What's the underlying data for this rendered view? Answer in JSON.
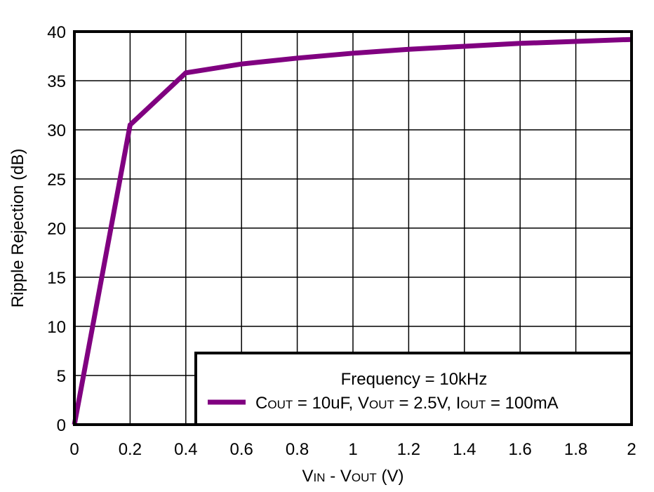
{
  "chart_data": {
    "type": "line",
    "title": "",
    "xlabel": {
      "main": "V",
      "sub1": "IN",
      "mid": " - V",
      "sub2": "OUT",
      "end": " (V)"
    },
    "ylabel": "Ripple Rejection (dB)",
    "xlim": [
      0,
      2
    ],
    "ylim": [
      0,
      40
    ],
    "xticks": [
      0,
      0.2,
      0.4,
      0.6,
      0.8,
      1,
      1.2,
      1.4,
      1.6,
      1.8,
      2
    ],
    "xtick_labels": [
      "0",
      "0.2",
      "0.4",
      "0.6",
      "0.8",
      "1",
      "1.2",
      "1.4",
      "1.6",
      "1.8",
      "2"
    ],
    "yticks": [
      0,
      5,
      10,
      15,
      20,
      25,
      30,
      35,
      40
    ],
    "ytick_labels": [
      "0",
      "5",
      "10",
      "15",
      "20",
      "25",
      "30",
      "35",
      "40"
    ],
    "grid": true,
    "legend_placement": "bottom-right",
    "legend_title": "Frequency = 10kHz",
    "series": [
      {
        "name": "COUT = 10uF, VOUT = 2.5V, IOUT = 100mA",
        "name_parts": [
          "C",
          "OUT",
          " = 10uF, V",
          "OUT",
          " = 2.5V, I",
          "OUT",
          " = 100mA"
        ],
        "color": "#800080",
        "x": [
          0,
          0.2,
          0.4,
          0.6,
          0.8,
          1.0,
          1.2,
          1.4,
          1.6,
          1.8,
          2.0
        ],
        "y": [
          0,
          30.5,
          35.8,
          36.7,
          37.3,
          37.8,
          38.2,
          38.5,
          38.8,
          39.0,
          39.2
        ]
      }
    ]
  }
}
